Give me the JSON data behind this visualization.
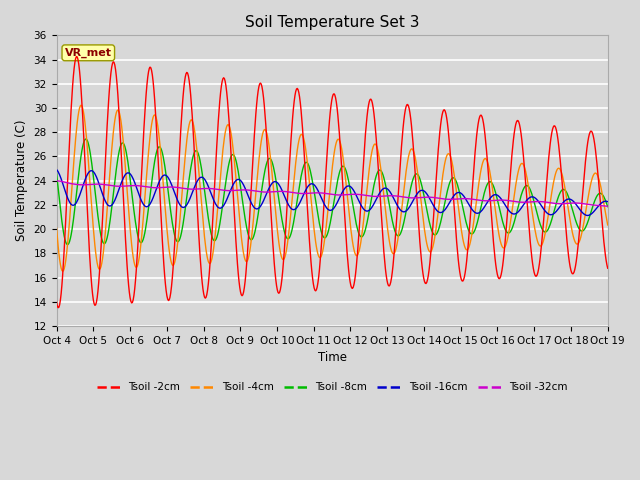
{
  "title": "Soil Temperature Set 3",
  "xlabel": "Time",
  "ylabel": "Soil Temperature (C)",
  "ylim": [
    12,
    36
  ],
  "yticks": [
    12,
    14,
    16,
    18,
    20,
    22,
    24,
    26,
    28,
    30,
    32,
    34,
    36
  ],
  "background_color": "#d8d8d8",
  "plot_bg_color": "#d8d8d8",
  "grid_color": "#ffffff",
  "annotation_text": "VR_met",
  "annotation_bg": "#ffffaa",
  "annotation_border": "#999900",
  "series_colors": {
    "Tsoil -2cm": "#ff0000",
    "Tsoil -4cm": "#ff8800",
    "Tsoil -8cm": "#00bb00",
    "Tsoil -16cm": "#0000cc",
    "Tsoil -32cm": "#cc00cc"
  },
  "n_points": 720,
  "days": 15
}
